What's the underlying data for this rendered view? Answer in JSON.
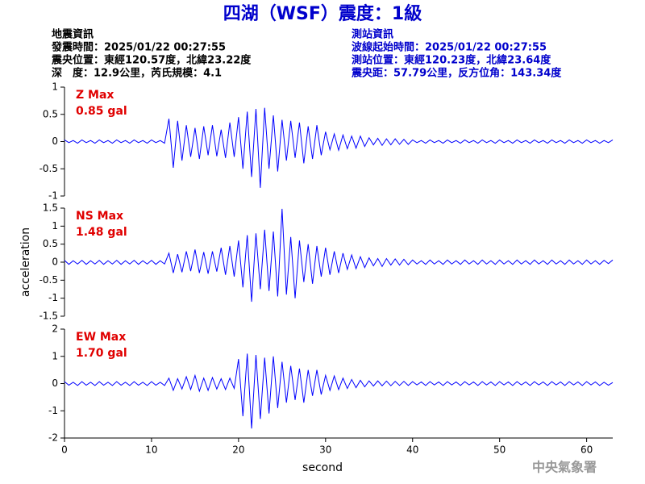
{
  "header": {
    "title": "四湖（WSF）震度：1級",
    "left": [
      "地震資訊",
      "發震時間：2025/01/22 00:27:55",
      "震央位置：東經120.57度，北緯23.22度",
      "深　度：12.9公里，芮氏規模：4.1"
    ],
    "right": [
      "測站資訊",
      "波線起始時間：2025/01/22 00:27:55",
      "測站位置：東經120.23度，北緯23.64度",
      "震央距：57.79公里，反方位角：143.34度"
    ],
    "footer": "中央氣象署"
  },
  "chart_data": [
    {
      "type": "line",
      "annotations": [
        "Z Max",
        "0.85 gal"
      ],
      "color": "#0000ff",
      "xlim": [
        0,
        63
      ],
      "ylim": [
        -1,
        1
      ],
      "yticks": [
        1,
        0.5,
        0,
        -0.5,
        -1
      ],
      "x": [
        0,
        0.5,
        1,
        1.5,
        2,
        2.5,
        3,
        3.5,
        4,
        4.5,
        5,
        5.5,
        6,
        6.5,
        7,
        7.5,
        8,
        8.5,
        9,
        9.5,
        10,
        10.5,
        11,
        11.5,
        12,
        12.5,
        13,
        13.5,
        14,
        14.5,
        15,
        15.5,
        16,
        16.5,
        17,
        17.5,
        18,
        18.5,
        19,
        19.5,
        20,
        20.5,
        21,
        21.5,
        22,
        22.5,
        23,
        23.5,
        24,
        24.5,
        25,
        25.5,
        26,
        26.5,
        27,
        27.5,
        28,
        28.5,
        29,
        29.5,
        30,
        30.5,
        31,
        31.5,
        32,
        32.5,
        33,
        33.5,
        34,
        34.5,
        35,
        35.5,
        36,
        36.5,
        37,
        37.5,
        38,
        38.5,
        39,
        39.5,
        40,
        40.5,
        41,
        41.5,
        42,
        42.5,
        43,
        43.5,
        44,
        44.5,
        45,
        45.5,
        46,
        46.5,
        47,
        47.5,
        48,
        48.5,
        49,
        49.5,
        50,
        50.5,
        51,
        51.5,
        52,
        52.5,
        53,
        53.5,
        54,
        54.5,
        55,
        55.5,
        56,
        56.5,
        57,
        57.5,
        58,
        58.5,
        59,
        59.5,
        60,
        60.5,
        61,
        61.5,
        62,
        62.5,
        63
      ],
      "values": [
        0.03,
        -0.02,
        0.02,
        -0.03,
        0.03,
        -0.02,
        0.02,
        -0.03,
        0.03,
        -0.02,
        0.02,
        -0.03,
        0.03,
        -0.02,
        0.02,
        -0.03,
        0.03,
        -0.02,
        0.02,
        -0.03,
        0.03,
        -0.02,
        0.02,
        -0.03,
        0.42,
        -0.48,
        0.38,
        -0.35,
        0.3,
        -0.28,
        0.25,
        -0.32,
        0.28,
        -0.25,
        0.3,
        -0.27,
        0.22,
        -0.3,
        0.35,
        -0.28,
        0.45,
        -0.5,
        0.55,
        -0.65,
        0.6,
        -0.85,
        0.62,
        -0.5,
        0.48,
        -0.55,
        0.4,
        -0.35,
        0.38,
        -0.3,
        0.35,
        -0.4,
        0.28,
        -0.32,
        0.3,
        -0.25,
        0.18,
        -0.15,
        0.14,
        -0.16,
        0.12,
        -0.13,
        0.1,
        -0.12,
        0.1,
        -0.09,
        0.07,
        -0.06,
        0.06,
        -0.07,
        0.05,
        -0.06,
        0.05,
        -0.05,
        0.04,
        -0.05,
        0.03,
        -0.02,
        0.02,
        -0.03,
        0.03,
        -0.02,
        0.02,
        -0.03,
        0.03,
        -0.02,
        0.02,
        -0.03,
        0.03,
        -0.02,
        0.02,
        -0.03,
        0.03,
        -0.02,
        0.02,
        -0.03,
        0.03,
        -0.02,
        0.02,
        -0.03,
        0.03,
        -0.02,
        0.02,
        -0.03,
        0.03,
        -0.02,
        0.02,
        -0.03,
        0.03,
        -0.02,
        0.02,
        -0.03,
        0.03,
        -0.02,
        0.02,
        -0.03,
        0.03,
        -0.02,
        0.02,
        -0.03,
        0.02,
        -0.02,
        0.03
      ]
    },
    {
      "type": "line",
      "annotations": [
        "NS Max",
        "1.48 gal"
      ],
      "color": "#0000ff",
      "ylabel": "acceleration",
      "xlim": [
        0,
        63
      ],
      "ylim": [
        -1.5,
        1.5
      ],
      "yticks": [
        1.5,
        1,
        0.5,
        0,
        -0.5,
        -1,
        -1.5
      ],
      "x": [
        0,
        0.5,
        1,
        1.5,
        2,
        2.5,
        3,
        3.5,
        4,
        4.5,
        5,
        5.5,
        6,
        6.5,
        7,
        7.5,
        8,
        8.5,
        9,
        9.5,
        10,
        10.5,
        11,
        11.5,
        12,
        12.5,
        13,
        13.5,
        14,
        14.5,
        15,
        15.5,
        16,
        16.5,
        17,
        17.5,
        18,
        18.5,
        19,
        19.5,
        20,
        20.5,
        21,
        21.5,
        22,
        22.5,
        23,
        23.5,
        24,
        24.5,
        25,
        25.5,
        26,
        26.5,
        27,
        27.5,
        28,
        28.5,
        29,
        29.5,
        30,
        30.5,
        31,
        31.5,
        32,
        32.5,
        33,
        33.5,
        34,
        34.5,
        35,
        35.5,
        36,
        36.5,
        37,
        37.5,
        38,
        38.5,
        39,
        39.5,
        40,
        40.5,
        41,
        41.5,
        42,
        42.5,
        43,
        43.5,
        44,
        44.5,
        45,
        45.5,
        46,
        46.5,
        47,
        47.5,
        48,
        48.5,
        49,
        49.5,
        50,
        50.5,
        51,
        51.5,
        52,
        52.5,
        53,
        53.5,
        54,
        54.5,
        55,
        55.5,
        56,
        56.5,
        57,
        57.5,
        58,
        58.5,
        59,
        59.5,
        60,
        60.5,
        61,
        61.5,
        62,
        62.5,
        63
      ],
      "values": [
        0.05,
        -0.06,
        0.04,
        -0.05,
        0.05,
        -0.06,
        0.04,
        -0.05,
        0.05,
        -0.06,
        0.04,
        -0.05,
        0.05,
        -0.06,
        0.04,
        -0.05,
        0.05,
        -0.06,
        0.04,
        -0.05,
        0.05,
        -0.06,
        0.04,
        -0.05,
        0.25,
        -0.3,
        0.22,
        -0.28,
        0.3,
        -0.25,
        0.35,
        -0.3,
        0.28,
        -0.32,
        0.3,
        -0.26,
        0.4,
        -0.35,
        0.45,
        -0.4,
        0.6,
        -0.7,
        0.75,
        -1.1,
        0.8,
        -0.75,
        0.9,
        -0.8,
        0.85,
        -0.95,
        1.48,
        -0.9,
        0.7,
        -1.0,
        0.6,
        -0.55,
        0.5,
        -0.6,
        0.45,
        -0.4,
        0.4,
        -0.35,
        0.3,
        -0.3,
        0.25,
        -0.2,
        0.2,
        -0.18,
        0.15,
        -0.15,
        0.12,
        -0.1,
        0.1,
        -0.12,
        0.1,
        -0.08,
        0.09,
        -0.08,
        0.08,
        -0.07,
        0.06,
        -0.05,
        0.04,
        -0.06,
        0.06,
        -0.05,
        0.04,
        -0.06,
        0.06,
        -0.05,
        0.04,
        -0.06,
        0.06,
        -0.05,
        0.04,
        -0.06,
        0.06,
        -0.05,
        0.04,
        -0.06,
        0.06,
        -0.05,
        0.04,
        -0.06,
        0.06,
        -0.05,
        0.04,
        -0.06,
        0.06,
        -0.05,
        0.04,
        -0.06,
        0.06,
        -0.05,
        0.04,
        -0.06,
        0.06,
        -0.05,
        0.04,
        -0.06,
        0.06,
        -0.05,
        0.04,
        -0.06,
        0.05,
        -0.04,
        0.06
      ]
    },
    {
      "type": "line",
      "annotations": [
        "EW Max",
        "1.70 gal"
      ],
      "color": "#0000ff",
      "xlabel": "second",
      "xlim": [
        0,
        63
      ],
      "xticks": [
        0,
        10,
        20,
        30,
        40,
        50,
        60
      ],
      "ylim": [
        -2,
        2
      ],
      "yticks": [
        2,
        1,
        0,
        -1,
        -2
      ],
      "x": [
        0,
        0.5,
        1,
        1.5,
        2,
        2.5,
        3,
        3.5,
        4,
        4.5,
        5,
        5.5,
        6,
        6.5,
        7,
        7.5,
        8,
        8.5,
        9,
        9.5,
        10,
        10.5,
        11,
        11.5,
        12,
        12.5,
        13,
        13.5,
        14,
        14.5,
        15,
        15.5,
        16,
        16.5,
        17,
        17.5,
        18,
        18.5,
        19,
        19.5,
        20,
        20.5,
        21,
        21.5,
        22,
        22.5,
        23,
        23.5,
        24,
        24.5,
        25,
        25.5,
        26,
        26.5,
        27,
        27.5,
        28,
        28.5,
        29,
        29.5,
        30,
        30.5,
        31,
        31.5,
        32,
        32.5,
        33,
        33.5,
        34,
        34.5,
        35,
        35.5,
        36,
        36.5,
        37,
        37.5,
        38,
        38.5,
        39,
        39.5,
        40,
        40.5,
        41,
        41.5,
        42,
        42.5,
        43,
        43.5,
        44,
        44.5,
        45,
        45.5,
        46,
        46.5,
        47,
        47.5,
        48,
        48.5,
        49,
        49.5,
        50,
        50.5,
        51,
        51.5,
        52,
        52.5,
        53,
        53.5,
        54,
        54.5,
        55,
        55.5,
        56,
        56.5,
        57,
        57.5,
        58,
        58.5,
        59,
        59.5,
        60,
        60.5,
        61,
        61.5,
        62,
        62.5,
        63
      ],
      "values": [
        0.07,
        -0.06,
        0.05,
        -0.07,
        0.07,
        -0.06,
        0.05,
        -0.07,
        0.07,
        -0.06,
        0.05,
        -0.07,
        0.07,
        -0.06,
        0.05,
        -0.07,
        0.07,
        -0.06,
        0.05,
        -0.07,
        0.07,
        -0.06,
        0.05,
        -0.07,
        0.2,
        -0.25,
        0.18,
        -0.2,
        0.25,
        -0.22,
        0.3,
        -0.28,
        0.2,
        -0.25,
        0.22,
        -0.2,
        0.18,
        -0.22,
        0.2,
        -0.18,
        0.9,
        -1.2,
        1.1,
        -1.65,
        1.05,
        -1.3,
        0.95,
        -1.1,
        1.0,
        -0.9,
        0.8,
        -0.7,
        0.65,
        -0.6,
        0.55,
        -0.7,
        0.5,
        -0.45,
        0.5,
        -0.4,
        0.3,
        -0.25,
        0.28,
        -0.22,
        0.2,
        -0.18,
        0.15,
        -0.15,
        0.12,
        -0.12,
        0.1,
        -0.09,
        0.1,
        -0.08,
        0.09,
        -0.08,
        0.08,
        -0.07,
        0.08,
        -0.07,
        0.07,
        -0.05,
        0.06,
        -0.07,
        0.07,
        -0.05,
        0.06,
        -0.07,
        0.07,
        -0.05,
        0.06,
        -0.07,
        0.07,
        -0.05,
        0.06,
        -0.07,
        0.07,
        -0.05,
        0.06,
        -0.07,
        0.07,
        -0.05,
        0.06,
        -0.07,
        0.07,
        -0.05,
        0.06,
        -0.07,
        0.07,
        -0.05,
        0.06,
        -0.07,
        0.07,
        -0.05,
        0.06,
        -0.07,
        0.07,
        -0.05,
        0.06,
        -0.07,
        0.07,
        -0.05,
        0.06,
        -0.07,
        0.05,
        -0.06,
        0.04
      ]
    }
  ]
}
